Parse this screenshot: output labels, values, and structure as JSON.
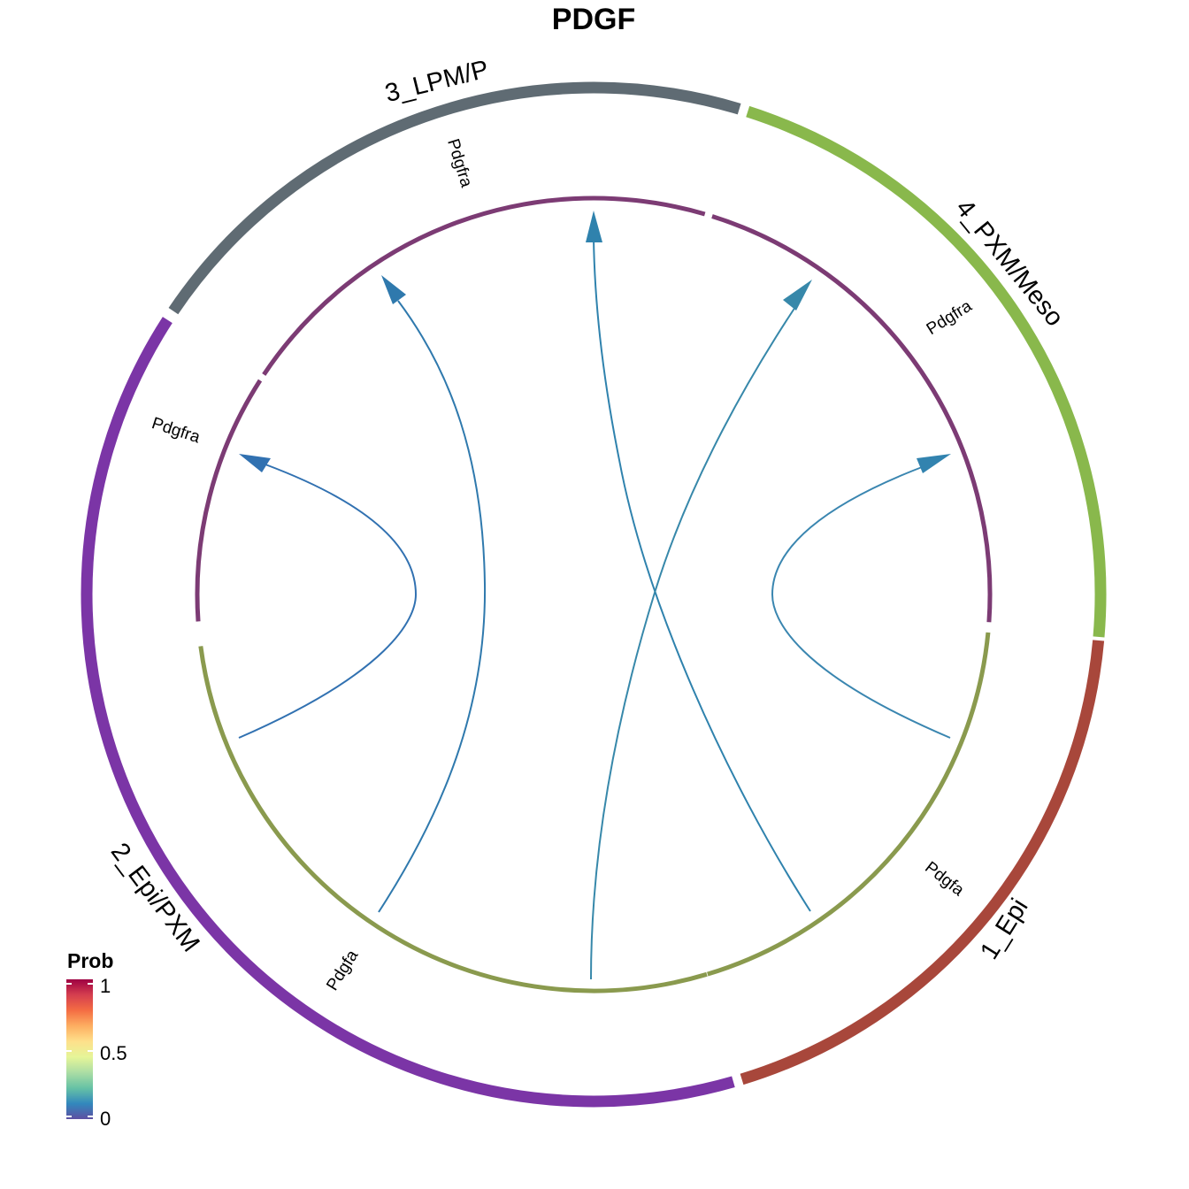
{
  "title": "PDGF",
  "outer_sectors": [
    {
      "name": "3_LPM/P",
      "color": "#5f6b73"
    },
    {
      "name": "4_PXM/Meso",
      "color": "#89b84c"
    },
    {
      "name": "1_Epi",
      "color": "#a8473b"
    },
    {
      "name": "2_Epi/PXM",
      "color": "#7b35a6"
    }
  ],
  "inner_segments": [
    {
      "group": "receptor",
      "color": "#7c3b74"
    },
    {
      "group": "ligand",
      "color": "#8a9a4e"
    }
  ],
  "gene_labels": [
    "Pdgfra",
    "Pdgfra",
    "Pdgfra",
    "Pdgfa",
    "Pdgfa"
  ],
  "links": [
    {
      "from": "Pdgfa (2_Epi/PXM)",
      "to": "Pdgfra (2_Epi/PXM)",
      "color": "#3171b1"
    },
    {
      "from": "Pdgfa (2_Epi/PXM)",
      "to": "Pdgfra (3_LPM/P)",
      "color": "#2f79ad"
    },
    {
      "from": "Pdgfa (1_Epi)",
      "to": "Pdgfra (3_LPM/P)",
      "color": "#2f82ad"
    },
    {
      "from": "Pdgfa (1_Epi)",
      "to": "Pdgfra (4_PXM/Meso)",
      "color": "#3788aa"
    },
    {
      "from": "Pdgfa (2_Epi/PXM)",
      "to": "Pdgfra (4_PXM/Meso)",
      "color": "#3283af"
    },
    {
      "from": "Pdgfa (1_Epi)",
      "to": "Pdgfra (4_PXM/Meso)",
      "color": "#3a86b0"
    }
  ],
  "legend": {
    "title": "Prob",
    "ticks": [
      "1",
      "0.5",
      "0"
    ],
    "gradient_colors": [
      "#9e0142",
      "#d53e4f",
      "#f46d43",
      "#fdae61",
      "#fee08b",
      "#e6f598",
      "#abdda4",
      "#66c2a5",
      "#3288bd",
      "#5e4fa2"
    ]
  }
}
